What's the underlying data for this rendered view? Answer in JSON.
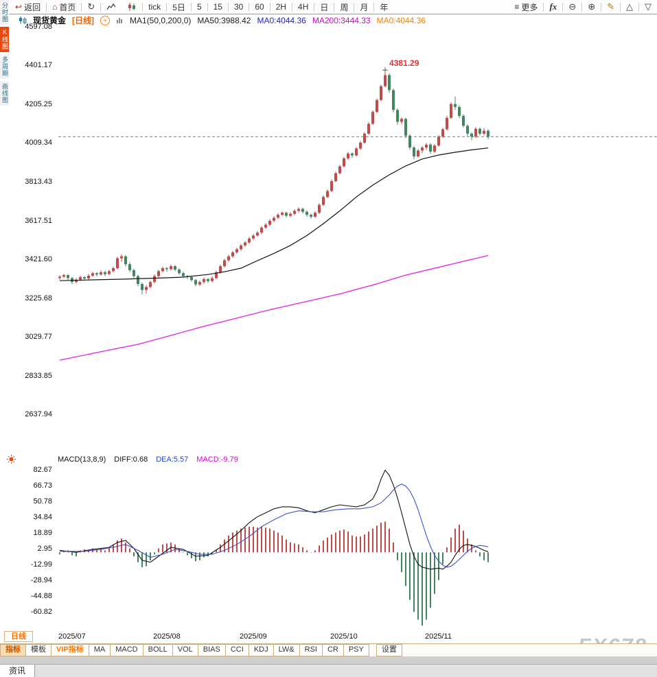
{
  "toolbar": {
    "back_label": "返回",
    "home_label": "首页",
    "tick_label": "tick",
    "five_day_label": "5日",
    "periods": [
      "5",
      "15",
      "30",
      "60",
      "2H",
      "4H",
      "日",
      "周",
      "月",
      "年"
    ],
    "more_label": "更多",
    "fx_label": "fx"
  },
  "icons": {
    "back-icon": "↩",
    "home-icon": "⌂",
    "refresh-icon": "↻",
    "menu-icon": "≡",
    "zoom-out-icon": "⊖",
    "zoom-in-icon": "⊕",
    "draw-icon": "✎",
    "expand-icon": "△",
    "collapse-icon": "▽",
    "legend-settings-icon": "≡"
  },
  "left_tabs": [
    {
      "label": "分时图",
      "active": false
    },
    {
      "label": "K线图",
      "active": true
    },
    {
      "label": "多周期",
      "active": false
    },
    {
      "label": "画线图",
      "active": false
    }
  ],
  "legend": {
    "symbol": "现货黄金",
    "period": "[日线]",
    "ma_group": "MA1(50,0,200,0)",
    "ma50": "MA50:3988.42",
    "ma0_blue": "MA0:4044.36",
    "ma200": "MA200:3444.33",
    "ma0_orange": "MA0:4044.36"
  },
  "macd_legend": {
    "title": "MACD(13,8,9)",
    "diff": "DIFF:0.68",
    "dea": "DEA:5.57",
    "macd": "MACD:-9.79"
  },
  "bottom": {
    "period_tab": "日线",
    "news_tab": "资讯",
    "watermark": "FX678",
    "indicator_tabs": [
      {
        "label": "指标"
      },
      {
        "label": "模板"
      },
      {
        "label": "VIP指标"
      },
      {
        "label": "MA"
      },
      {
        "label": "MACD"
      },
      {
        "label": "BOLL"
      },
      {
        "label": "VOL"
      },
      {
        "label": "BIAS"
      },
      {
        "label": "CCI"
      },
      {
        "label": "KDJ"
      },
      {
        "label": "LW&"
      },
      {
        "label": "RSI"
      },
      {
        "label": "CR"
      },
      {
        "label": "PSY"
      },
      {
        "label": "设置"
      }
    ]
  },
  "colors": {
    "up": "#bf4b4b",
    "down": "#43855c",
    "ma50": "#111111",
    "ma200": "#e51ce5",
    "diff": "#111111",
    "dea": "#3c50c8",
    "price_line": "#3899ae",
    "annotation": "#e63232",
    "accent_orange": "#ff7e00",
    "active_left_tab_bg": "#e8490f"
  },
  "chart_data": {
    "type": "candlestick",
    "title": "现货黄金 日线",
    "price_axis_ticks": [
      4597.08,
      4401.17,
      4205.25,
      4009.34,
      3813.43,
      3617.51,
      3421.6,
      3225.68,
      3029.77,
      2833.85,
      2637.94
    ],
    "x_labels": [
      {
        "label": "2025/07",
        "day": 0
      },
      {
        "label": "2025/08",
        "day": 23
      },
      {
        "label": "2025/09",
        "day": 44
      },
      {
        "label": "2025/10",
        "day": 66
      },
      {
        "label": "2025/11",
        "day": 89
      }
    ],
    "current_price_line": 4044.36,
    "peak_annotation": {
      "day": 79,
      "price": 4381.29,
      "label": "4381.29"
    },
    "candles": [
      [
        3330,
        3345,
        3322,
        3337
      ],
      [
        3337,
        3352,
        3330,
        3345
      ],
      [
        3345,
        3350,
        3320,
        3330
      ],
      [
        3330,
        3336,
        3300,
        3310
      ],
      [
        3310,
        3330,
        3304,
        3322
      ],
      [
        3322,
        3342,
        3315,
        3335
      ],
      [
        3335,
        3340,
        3318,
        3328
      ],
      [
        3328,
        3350,
        3322,
        3342
      ],
      [
        3342,
        3362,
        3336,
        3355
      ],
      [
        3355,
        3360,
        3338,
        3348
      ],
      [
        3348,
        3368,
        3342,
        3360
      ],
      [
        3360,
        3366,
        3340,
        3350
      ],
      [
        3350,
        3372,
        3344,
        3365
      ],
      [
        3365,
        3388,
        3358,
        3380
      ],
      [
        3380,
        3438,
        3374,
        3430
      ],
      [
        3430,
        3451,
        3412,
        3440
      ],
      [
        3440,
        3446,
        3388,
        3400
      ],
      [
        3400,
        3410,
        3360,
        3370
      ],
      [
        3370,
        3378,
        3330,
        3340
      ],
      [
        3340,
        3348,
        3288,
        3300
      ],
      [
        3300,
        3308,
        3248,
        3270
      ],
      [
        3270,
        3295,
        3252,
        3285
      ],
      [
        3285,
        3318,
        3278,
        3310
      ],
      [
        3310,
        3348,
        3304,
        3340
      ],
      [
        3340,
        3372,
        3334,
        3365
      ],
      [
        3365,
        3388,
        3358,
        3380
      ],
      [
        3380,
        3386,
        3362,
        3375
      ],
      [
        3375,
        3398,
        3368,
        3390
      ],
      [
        3390,
        3396,
        3365,
        3373
      ],
      [
        3373,
        3380,
        3346,
        3355
      ],
      [
        3355,
        3362,
        3332,
        3340
      ],
      [
        3340,
        3346,
        3326,
        3335
      ],
      [
        3335,
        3342,
        3312,
        3320
      ],
      [
        3320,
        3326,
        3288,
        3298
      ],
      [
        3298,
        3318,
        3290,
        3310
      ],
      [
        3310,
        3332,
        3302,
        3325
      ],
      [
        3325,
        3330,
        3306,
        3315
      ],
      [
        3315,
        3338,
        3308,
        3330
      ],
      [
        3330,
        3368,
        3324,
        3360
      ],
      [
        3360,
        3398,
        3352,
        3390
      ],
      [
        3390,
        3428,
        3384,
        3420
      ],
      [
        3420,
        3448,
        3412,
        3440
      ],
      [
        3440,
        3468,
        3432,
        3460
      ],
      [
        3460,
        3484,
        3452,
        3476
      ],
      [
        3476,
        3503,
        3468,
        3495
      ],
      [
        3495,
        3518,
        3488,
        3510
      ],
      [
        3510,
        3538,
        3502,
        3530
      ],
      [
        3530,
        3553,
        3522,
        3545
      ],
      [
        3545,
        3568,
        3538,
        3560
      ],
      [
        3560,
        3593,
        3552,
        3585
      ],
      [
        3585,
        3608,
        3578,
        3600
      ],
      [
        3600,
        3628,
        3592,
        3620
      ],
      [
        3620,
        3643,
        3612,
        3635
      ],
      [
        3635,
        3658,
        3628,
        3650
      ],
      [
        3650,
        3668,
        3642,
        3660
      ],
      [
        3660,
        3666,
        3636,
        3645
      ],
      [
        3645,
        3663,
        3638,
        3655
      ],
      [
        3655,
        3678,
        3648,
        3670
      ],
      [
        3670,
        3688,
        3662,
        3680
      ],
      [
        3680,
        3686,
        3656,
        3665
      ],
      [
        3665,
        3672,
        3640,
        3650
      ],
      [
        3650,
        3656,
        3630,
        3640
      ],
      [
        3640,
        3668,
        3634,
        3660
      ],
      [
        3660,
        3708,
        3654,
        3700
      ],
      [
        3700,
        3748,
        3694,
        3740
      ],
      [
        3740,
        3778,
        3734,
        3770
      ],
      [
        3770,
        3828,
        3764,
        3820
      ],
      [
        3820,
        3868,
        3814,
        3860
      ],
      [
        3860,
        3903,
        3854,
        3895
      ],
      [
        3895,
        3943,
        3889,
        3935
      ],
      [
        3935,
        3968,
        3928,
        3960
      ],
      [
        3960,
        3966,
        3938,
        3950
      ],
      [
        3950,
        3993,
        3944,
        3985
      ],
      [
        3985,
        4023,
        3978,
        4015
      ],
      [
        4015,
        4068,
        4008,
        4060
      ],
      [
        4060,
        4118,
        4054,
        4110
      ],
      [
        4110,
        4178,
        4104,
        4170
      ],
      [
        4170,
        4238,
        4164,
        4230
      ],
      [
        4230,
        4308,
        4224,
        4300
      ],
      [
        4300,
        4381.29,
        4294,
        4356
      ],
      [
        4356,
        4365,
        4268,
        4280
      ],
      [
        4280,
        4288,
        4168,
        4180
      ],
      [
        4180,
        4188,
        4105,
        4120
      ],
      [
        4120,
        4143,
        4108,
        4135
      ],
      [
        4135,
        4140,
        4038,
        4050
      ],
      [
        4050,
        4058,
        3978,
        3990
      ],
      [
        3990,
        3998,
        3930,
        3945
      ],
      [
        3945,
        3983,
        3938,
        3975
      ],
      [
        3975,
        3998,
        3962,
        3990
      ],
      [
        3990,
        4013,
        3978,
        4005
      ],
      [
        4005,
        4012,
        3958,
        3970
      ],
      [
        3970,
        4008,
        3962,
        4000
      ],
      [
        4000,
        4053,
        3994,
        4045
      ],
      [
        4045,
        4090,
        4038,
        4082
      ],
      [
        4082,
        4150,
        4076,
        4140
      ],
      [
        4140,
        4218,
        4134,
        4210
      ],
      [
        4210,
        4248,
        4180,
        4195
      ],
      [
        4195,
        4205,
        4138,
        4150
      ],
      [
        4150,
        4158,
        4092,
        4100
      ],
      [
        4100,
        4108,
        4048,
        4060
      ],
      [
        4060,
        4068,
        4028,
        4045
      ],
      [
        4045,
        4093,
        4038,
        4085
      ],
      [
        4085,
        4092,
        4052,
        4060
      ],
      [
        4060,
        4088,
        4052,
        4075
      ],
      [
        4075,
        4082,
        4032,
        4044.36
      ]
    ],
    "ma50_points": [
      [
        0,
        3317
      ],
      [
        8,
        3321
      ],
      [
        16,
        3325
      ],
      [
        24,
        3330
      ],
      [
        30,
        3335
      ],
      [
        36,
        3348
      ],
      [
        40,
        3362
      ],
      [
        44,
        3380
      ],
      [
        48,
        3418
      ],
      [
        52,
        3455
      ],
      [
        56,
        3495
      ],
      [
        60,
        3545
      ],
      [
        64,
        3605
      ],
      [
        68,
        3670
      ],
      [
        72,
        3740
      ],
      [
        76,
        3800
      ],
      [
        80,
        3852
      ],
      [
        84,
        3897
      ],
      [
        88,
        3932
      ],
      [
        92,
        3952
      ],
      [
        96,
        3966
      ],
      [
        100,
        3978
      ],
      [
        104,
        3988
      ]
    ],
    "ma200_points": [
      [
        0,
        2915
      ],
      [
        10,
        2958
      ],
      [
        19,
        2995
      ],
      [
        27,
        3040
      ],
      [
        35,
        3086
      ],
      [
        43,
        3128
      ],
      [
        51,
        3170
      ],
      [
        60,
        3212
      ],
      [
        68,
        3250
      ],
      [
        76,
        3295
      ],
      [
        84,
        3345
      ],
      [
        94,
        3395
      ],
      [
        104,
        3444
      ]
    ],
    "macd": {
      "axis_ticks": [
        82.67,
        66.73,
        50.78,
        34.84,
        18.89,
        2.95,
        -12.99,
        -28.94,
        -44.88,
        -60.82
      ],
      "histogram": [
        -2,
        1,
        2,
        -3,
        -4,
        2,
        3,
        2,
        4,
        3,
        4,
        2,
        5,
        8,
        12,
        14,
        10,
        4,
        -4,
        -10,
        -15,
        -14,
        -8,
        -2,
        4,
        8,
        9,
        10,
        8,
        4,
        0,
        -3,
        -6,
        -9,
        -8,
        -5,
        -4,
        -2,
        3,
        8,
        13,
        17,
        20,
        22,
        24,
        25,
        26,
        26,
        25,
        26,
        25,
        24,
        22,
        20,
        17,
        13,
        10,
        9,
        8,
        5,
        2,
        0,
        2,
        7,
        12,
        15,
        18,
        20,
        22,
        23,
        21,
        17,
        16,
        16,
        18,
        21,
        24,
        27,
        30,
        31,
        24,
        10,
        -8,
        -20,
        -34,
        -48,
        -60,
        -68,
        -74,
        -68,
        -56,
        -42,
        -28,
        -12,
        5,
        15,
        24,
        28,
        22,
        14,
        8,
        2,
        -4,
        -8,
        -10
      ],
      "diff_points": [
        [
          0,
          2
        ],
        [
          4,
          0
        ],
        [
          8,
          3
        ],
        [
          12,
          5
        ],
        [
          14,
          10
        ],
        [
          16,
          12
        ],
        [
          18,
          4
        ],
        [
          20,
          -8
        ],
        [
          22,
          -10
        ],
        [
          24,
          -4
        ],
        [
          27,
          5
        ],
        [
          30,
          3
        ],
        [
          33,
          -4
        ],
        [
          36,
          -3
        ],
        [
          39,
          5
        ],
        [
          42,
          15
        ],
        [
          44,
          22
        ],
        [
          46,
          30
        ],
        [
          48,
          36
        ],
        [
          50,
          40
        ],
        [
          52,
          44
        ],
        [
          54,
          46
        ],
        [
          56,
          46
        ],
        [
          58,
          45
        ],
        [
          60,
          42
        ],
        [
          62,
          40
        ],
        [
          64,
          43
        ],
        [
          66,
          46
        ],
        [
          68,
          48
        ],
        [
          70,
          47
        ],
        [
          72,
          46
        ],
        [
          74,
          48
        ],
        [
          76,
          54
        ],
        [
          77,
          62
        ],
        [
          78,
          74
        ],
        [
          79,
          83
        ],
        [
          80,
          78
        ],
        [
          81,
          68
        ],
        [
          82,
          55
        ],
        [
          83,
          40
        ],
        [
          84,
          24
        ],
        [
          85,
          8
        ],
        [
          86,
          -4
        ],
        [
          87,
          -12
        ],
        [
          88,
          -15
        ],
        [
          90,
          -17
        ],
        [
          92,
          -16
        ],
        [
          93,
          -17
        ],
        [
          94,
          -14
        ],
        [
          95,
          -10
        ],
        [
          96,
          -3
        ],
        [
          97,
          3
        ],
        [
          98,
          7
        ],
        [
          99,
          8
        ],
        [
          100,
          7
        ],
        [
          101,
          6
        ],
        [
          102,
          4
        ],
        [
          103,
          2
        ],
        [
          104,
          0.68
        ]
      ],
      "dea_points": [
        [
          0,
          1
        ],
        [
          6,
          1
        ],
        [
          10,
          3
        ],
        [
          14,
          6
        ],
        [
          16,
          8
        ],
        [
          19,
          2
        ],
        [
          22,
          -5
        ],
        [
          25,
          -2
        ],
        [
          28,
          3
        ],
        [
          31,
          1
        ],
        [
          34,
          -2
        ],
        [
          37,
          -2
        ],
        [
          40,
          2
        ],
        [
          43,
          8
        ],
        [
          46,
          16
        ],
        [
          49,
          26
        ],
        [
          52,
          33
        ],
        [
          55,
          39
        ],
        [
          58,
          42
        ],
        [
          61,
          41
        ],
        [
          64,
          41
        ],
        [
          67,
          43
        ],
        [
          70,
          44
        ],
        [
          73,
          44
        ],
        [
          76,
          46
        ],
        [
          78,
          50
        ],
        [
          80,
          58
        ],
        [
          81,
          63
        ],
        [
          82,
          67
        ],
        [
          83,
          69
        ],
        [
          84,
          67
        ],
        [
          85,
          62
        ],
        [
          86,
          54
        ],
        [
          87,
          43
        ],
        [
          88,
          30
        ],
        [
          89,
          17
        ],
        [
          90,
          6
        ],
        [
          91,
          -3
        ],
        [
          92,
          -9
        ],
        [
          93,
          -13
        ],
        [
          94,
          -15
        ],
        [
          95,
          -14
        ],
        [
          96,
          -11
        ],
        [
          97,
          -7
        ],
        [
          98,
          -3
        ],
        [
          99,
          1
        ],
        [
          100,
          4
        ],
        [
          101,
          6
        ],
        [
          102,
          7
        ],
        [
          103,
          6.5
        ],
        [
          104,
          5.57
        ]
      ]
    }
  }
}
